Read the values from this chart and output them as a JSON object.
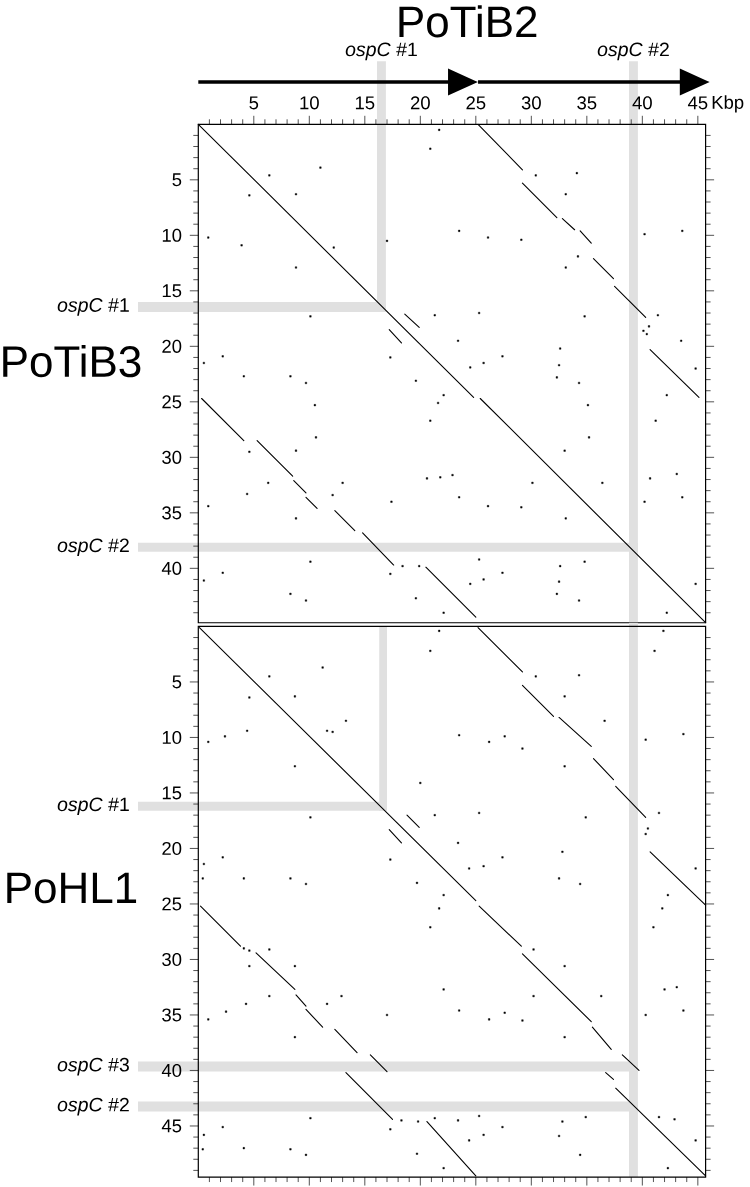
{
  "chart_data": [
    {
      "type": "line",
      "title": "PoTiB2",
      "xlabel": "Kbp",
      "ylabel": "PoTiB3",
      "xlim": [
        0,
        45.7
      ],
      "ylim": [
        44.9,
        0
      ],
      "xticks": [
        {
          "value": 1,
          "label": null
        },
        {
          "value": 2,
          "label": null
        },
        {
          "value": 3,
          "label": null
        },
        {
          "value": 4,
          "label": null
        },
        5,
        {
          "value": 6,
          "label": null
        },
        {
          "value": 7,
          "label": null
        },
        {
          "value": 8,
          "label": null
        },
        {
          "value": 9,
          "label": null
        },
        10,
        {
          "value": 11,
          "label": null
        },
        {
          "value": 12,
          "label": null
        },
        {
          "value": 13,
          "label": null
        },
        {
          "value": 14,
          "label": null
        },
        15,
        {
          "value": 16,
          "label": null
        },
        {
          "value": 17,
          "label": null
        },
        {
          "value": 18,
          "label": null
        },
        {
          "value": 19,
          "label": null
        },
        20,
        {
          "value": 21,
          "label": null
        },
        {
          "value": 22,
          "label": null
        },
        {
          "value": 23,
          "label": null
        },
        {
          "value": 24,
          "label": null
        },
        25,
        {
          "value": 26,
          "label": null
        },
        {
          "value": 27,
          "label": null
        },
        {
          "value": 28,
          "label": null
        },
        {
          "value": 29,
          "label": null
        },
        30,
        {
          "value": 31,
          "label": null
        },
        {
          "value": 32,
          "label": null
        },
        {
          "value": 33,
          "label": null
        },
        {
          "value": 34,
          "label": null
        },
        35,
        {
          "value": 36,
          "label": null
        },
        {
          "value": 37,
          "label": null
        },
        {
          "value": 38,
          "label": null
        },
        {
          "value": 39,
          "label": null
        },
        40,
        {
          "value": 41,
          "label": null
        },
        {
          "value": 42,
          "label": null
        },
        {
          "value": 43,
          "label": null
        },
        {
          "value": 44,
          "label": null
        },
        45
      ],
      "yticks": [
        {
          "value": 1,
          "label": null
        },
        {
          "value": 2,
          "label": null
        },
        {
          "value": 3,
          "label": null
        },
        {
          "value": 4,
          "label": null
        },
        5,
        {
          "value": 6,
          "label": null
        },
        {
          "value": 7,
          "label": null
        },
        {
          "value": 8,
          "label": null
        },
        {
          "value": 9,
          "label": null
        },
        10,
        {
          "value": 11,
          "label": null
        },
        {
          "value": 12,
          "label": null
        },
        {
          "value": 13,
          "label": null
        },
        {
          "value": 14,
          "label": null
        },
        15,
        {
          "value": 16,
          "label": null
        },
        {
          "value": 17,
          "label": null
        },
        {
          "value": 18,
          "label": null
        },
        {
          "value": 19,
          "label": null
        },
        20,
        {
          "value": 21,
          "label": null
        },
        {
          "value": 22,
          "label": null
        },
        {
          "value": 23,
          "label": null
        },
        {
          "value": 24,
          "label": null
        },
        25,
        {
          "value": 26,
          "label": null
        },
        {
          "value": 27,
          "label": null
        },
        {
          "value": 28,
          "label": null
        },
        {
          "value": 29,
          "label": null
        },
        30,
        {
          "value": 31,
          "label": null
        },
        {
          "value": 32,
          "label": null
        },
        {
          "value": 33,
          "label": null
        },
        {
          "value": 34,
          "label": null
        },
        35,
        {
          "value": 36,
          "label": null
        },
        {
          "value": 37,
          "label": null
        },
        {
          "value": 38,
          "label": null
        },
        {
          "value": 39,
          "label": null
        },
        40,
        {
          "value": 41,
          "label": null
        },
        {
          "value": 42,
          "label": null
        },
        {
          "value": 43,
          "label": null
        },
        {
          "value": 44,
          "label": null
        }
      ],
      "series": [
        {
          "color": "#000000",
          "x": [
            0.0,
            24.8,
            null,
            25.4,
            45.7
          ],
          "values": [
            0.0,
            24.6,
            null,
            24.7,
            44.9
          ]
        },
        {
          "color": "#000000",
          "x": [
            25.2,
            29.2,
            null,
            29.2,
            32.3,
            null,
            32.8,
            33.9,
            null,
            34.4,
            35.4,
            null,
            35.6,
            37.4,
            null,
            37.5,
            40.3,
            null,
            40.7,
            45.1
          ],
          "values": [
            0.0,
            4.1,
            null,
            5.3,
            8.4,
            null,
            8.5,
            9.5,
            null,
            9.6,
            10.7,
            null,
            12.1,
            13.9,
            null,
            14.6,
            17.4,
            null,
            20.3,
            24.6
          ]
        },
        {
          "color": "#000000",
          "x": [
            0.3,
            4.1,
            null,
            5.3,
            8.5,
            null,
            8.6,
            9.7,
            null,
            9.7,
            10.7,
            null,
            12.3,
            14.1,
            null,
            14.8,
            17.6,
            null,
            20.5,
            25.0
          ],
          "values": [
            24.7,
            28.5,
            null,
            28.5,
            31.7,
            null,
            32.1,
            33.2,
            null,
            33.6,
            34.6,
            null,
            34.8,
            36.6,
            null,
            36.8,
            39.7,
            null,
            39.9,
            44.4
          ]
        },
        {
          "color": "#000000",
          "x": [
            18.6,
            19.9,
            null,
            17.2,
            18.3
          ],
          "values": [
            17.1,
            18.3,
            null,
            18.5,
            19.7
          ]
        },
        {
          "type": "scatter",
          "color": "#000000",
          "marker": "square",
          "x": [
            21.7,
            20.9,
            11.0,
            6.4,
            4.6,
            8.8,
            34.1,
            30.4,
            33.1,
            0.9,
            3.9,
            12.2,
            17.0,
            23.5,
            26.1,
            29.1,
            40.2,
            43.6,
            8.8,
            33.1,
            34.2,
            10.1,
            21.3,
            25.3,
            34.8,
            41.4,
            2.2,
            0.5,
            17.3,
            23.4,
            27.4,
            25.7,
            24.5,
            32.6,
            32.5,
            43.5,
            4.1,
            8.3,
            9.7,
            19.6,
            32.3,
            34.3,
            44.8,
            10.5,
            22.1,
            21.6,
            35.1,
            42.2,
            20.9,
            41.2,
            10.6,
            35.2,
            4.6,
            8.8,
            33.0,
            20.6,
            21.8,
            22.9,
            13.0,
            6.3,
            30.1,
            36.4,
            40.7,
            43.1,
            4.4,
            12.1,
            23.5,
            26.1,
            29.1,
            40.2,
            43.6,
            17.4,
            0.9,
            8.8,
            33.1,
            10.1,
            25.3,
            34.8,
            2.2,
            0.5,
            17.3,
            27.4,
            25.7,
            24.5,
            32.6,
            32.5,
            44.8,
            8.3,
            9.7,
            19.6,
            32.3,
            34.3,
            22.1,
            42.2,
            40.6,
            40.1,
            40.4,
            18.4,
            19.9
          ],
          "values": [
            0.5,
            2.2,
            3.9,
            4.6,
            6.4,
            6.3,
            4.4,
            4.6,
            6.3,
            10.2,
            10.9,
            11.1,
            10.5,
            9.6,
            10.2,
            10.4,
            9.9,
            9.6,
            12.9,
            12.9,
            11.9,
            17.3,
            17.2,
            17.0,
            17.3,
            17.2,
            20.9,
            21.5,
            21.0,
            19.5,
            20.9,
            21.5,
            21.9,
            20.2,
            21.7,
            19.5,
            22.7,
            22.7,
            23.3,
            23.1,
            22.8,
            23.3,
            22.0,
            25.3,
            24.4,
            25.1,
            25.3,
            24.4,
            26.7,
            26.7,
            28.2,
            28.2,
            29.5,
            29.4,
            29.4,
            31.9,
            31.8,
            31.6,
            32.3,
            32.3,
            32.3,
            32.3,
            31.9,
            31.5,
            33.3,
            33.4,
            33.6,
            34.4,
            34.5,
            34.0,
            33.6,
            34.0,
            34.4,
            35.5,
            35.5,
            39.4,
            39.2,
            39.4,
            40.4,
            41.1,
            40.5,
            40.4,
            41.0,
            41.4,
            39.8,
            41.2,
            41.4,
            42.3,
            42.9,
            42.7,
            42.3,
            42.9,
            44.0,
            44.0,
            18.2,
            18.6,
            18.9,
            39.8,
            39.8
          ]
        }
      ],
      "bands": [
        {
          "axis": "x",
          "from": 16.1,
          "to": 16.9,
          "label": "*ospC* #1",
          "color": "#e0e0e0"
        },
        {
          "axis": "x",
          "from": 38.8,
          "to": 39.6,
          "label": "*ospC* #2",
          "color": "#e0e0e0"
        },
        {
          "axis": "y",
          "from": 16.0,
          "to": 16.9,
          "label": "*ospC* #1",
          "color": "#e0e0e0"
        },
        {
          "axis": "y",
          "from": 37.7,
          "to": 38.5,
          "label": "*ospC* #2",
          "color": "#e0e0e0"
        }
      ]
    },
    {
      "type": "line",
      "ylabel": "PoHL1",
      "xlim": [
        0,
        45.7
      ],
      "ylim": [
        49.6,
        0
      ],
      "tick_labels": "y",
      "xticks": [
        {
          "value": 1,
          "label": null
        },
        {
          "value": 2,
          "label": null
        },
        {
          "value": 3,
          "label": null
        },
        {
          "value": 4,
          "label": null
        },
        5,
        {
          "value": 6,
          "label": null
        },
        {
          "value": 7,
          "label": null
        },
        {
          "value": 8,
          "label": null
        },
        {
          "value": 9,
          "label": null
        },
        10,
        {
          "value": 11,
          "label": null
        },
        {
          "value": 12,
          "label": null
        },
        {
          "value": 13,
          "label": null
        },
        {
          "value": 14,
          "label": null
        },
        15,
        {
          "value": 16,
          "label": null
        },
        {
          "value": 17,
          "label": null
        },
        {
          "value": 18,
          "label": null
        },
        {
          "value": 19,
          "label": null
        },
        20,
        {
          "value": 21,
          "label": null
        },
        {
          "value": 22,
          "label": null
        },
        {
          "value": 23,
          "label": null
        },
        {
          "value": 24,
          "label": null
        },
        25,
        {
          "value": 26,
          "label": null
        },
        {
          "value": 27,
          "label": null
        },
        {
          "value": 28,
          "label": null
        },
        {
          "value": 29,
          "label": null
        },
        30,
        {
          "value": 31,
          "label": null
        },
        {
          "value": 32,
          "label": null
        },
        {
          "value": 33,
          "label": null
        },
        {
          "value": 34,
          "label": null
        },
        35,
        {
          "value": 36,
          "label": null
        },
        {
          "value": 37,
          "label": null
        },
        {
          "value": 38,
          "label": null
        },
        {
          "value": 39,
          "label": null
        },
        40,
        {
          "value": 41,
          "label": null
        },
        {
          "value": 42,
          "label": null
        },
        {
          "value": 43,
          "label": null
        },
        {
          "value": 44,
          "label": null
        },
        45
      ],
      "yticks": [
        {
          "value": 1,
          "label": null
        },
        {
          "value": 2,
          "label": null
        },
        {
          "value": 3,
          "label": null
        },
        {
          "value": 4,
          "label": null
        },
        5,
        {
          "value": 6,
          "label": null
        },
        {
          "value": 7,
          "label": null
        },
        {
          "value": 8,
          "label": null
        },
        {
          "value": 9,
          "label": null
        },
        10,
        {
          "value": 11,
          "label": null
        },
        {
          "value": 12,
          "label": null
        },
        {
          "value": 13,
          "label": null
        },
        {
          "value": 14,
          "label": null
        },
        15,
        {
          "value": 16,
          "label": null
        },
        {
          "value": 17,
          "label": null
        },
        {
          "value": 18,
          "label": null
        },
        {
          "value": 19,
          "label": null
        },
        20,
        {
          "value": 21,
          "label": null
        },
        {
          "value": 22,
          "label": null
        },
        {
          "value": 23,
          "label": null
        },
        {
          "value": 24,
          "label": null
        },
        25,
        {
          "value": 26,
          "label": null
        },
        {
          "value": 27,
          "label": null
        },
        {
          "value": 28,
          "label": null
        },
        {
          "value": 29,
          "label": null
        },
        30,
        {
          "value": 31,
          "label": null
        },
        {
          "value": 32,
          "label": null
        },
        {
          "value": 33,
          "label": null
        },
        {
          "value": 34,
          "label": null
        },
        35,
        {
          "value": 36,
          "label": null
        },
        {
          "value": 37,
          "label": null
        },
        {
          "value": 38,
          "label": null
        },
        {
          "value": 39,
          "label": null
        },
        40,
        {
          "value": 41,
          "label": null
        },
        {
          "value": 42,
          "label": null
        },
        {
          "value": 43,
          "label": null
        },
        {
          "value": 44,
          "label": null
        },
        45,
        {
          "value": 46,
          "label": null
        },
        {
          "value": 47,
          "label": null
        },
        {
          "value": 48,
          "label": null
        },
        {
          "value": 49,
          "label": null
        }
      ],
      "series": [
        {
          "color": "#000000",
          "x": [
            0.1,
            25.0,
            null,
            25.3,
            29.1,
            null,
            29.2,
            35.4,
            null,
            35.5,
            37.2,
            null,
            38.2,
            39.7,
            null,
            36.7,
            37.4,
            null,
            37.6,
            45.7
          ],
          "values": [
            0.1,
            24.7,
            null,
            25.2,
            28.8,
            null,
            29.5,
            35.6,
            null,
            36.1,
            38.1,
            null,
            38.6,
            40.0,
            null,
            40.2,
            40.8,
            null,
            41.6,
            49.5
          ]
        },
        {
          "color": "#000000",
          "x": [
            25.2,
            29.2,
            null,
            29.2,
            32.0,
            null,
            32.5,
            35.4,
            null,
            35.6,
            37.4,
            null,
            37.6,
            40.3,
            null,
            40.7,
            45.7
          ],
          "values": [
            0.1,
            4.1,
            null,
            5.3,
            8.1,
            null,
            8.2,
            10.8,
            null,
            11.9,
            13.8,
            null,
            14.4,
            17.2,
            null,
            20.3,
            25.1
          ]
        },
        {
          "color": "#000000",
          "x": [
            0.2,
            3.8,
            null,
            5.2,
            8.7,
            null,
            8.8,
            9.7,
            null,
            9.7,
            11.2,
            null,
            12.3,
            14.3,
            null,
            15.5,
            17.0,
            null,
            13.3,
            17.5,
            null,
            20.6,
            25.0
          ],
          "values": [
            25.2,
            28.8,
            null,
            29.4,
            32.7,
            null,
            33.2,
            34.2,
            null,
            34.5,
            36.1,
            null,
            36.3,
            38.4,
            null,
            38.6,
            40.1,
            null,
            40.2,
            44.4,
            null,
            44.6,
            49.5
          ]
        },
        {
          "color": "#000000",
          "x": [
            18.8,
            19.9,
            null,
            17.2,
            18.3
          ],
          "values": [
            17.0,
            18.1,
            null,
            18.3,
            19.5
          ]
        },
        {
          "type": "scatter",
          "color": "#000000",
          "marker": "square",
          "x": [
            21.7,
            20.9,
            41.9,
            41.1,
            11.2,
            6.4,
            34.3,
            30.4,
            4.6,
            8.7,
            33.0,
            4.4,
            2.4,
            0.9,
            11.6,
            12.1,
            13.3,
            36.6,
            23.5,
            26.2,
            27.6,
            29.2,
            40.3,
            43.7,
            8.7,
            33.0,
            20.0,
            10.1,
            21.3,
            25.3,
            34.9,
            41.5,
            2.2,
            17.3,
            23.4,
            32.8,
            27.4,
            0.5,
            0.4,
            4.1,
            8.3,
            9.7,
            19.7,
            24.4,
            25.7,
            32.5,
            34.4,
            44.8,
            22.1,
            21.7,
            42.3,
            41.8,
            20.9,
            41.0,
            6.4,
            4.6,
            8.7,
            30.2,
            33.0,
            6.4,
            22.1,
            42.0,
            43.1,
            12.9,
            30.2,
            36.3,
            2.5,
            0.9,
            4.3,
            11.6,
            17.0,
            23.5,
            26.2,
            27.6,
            29.2,
            40.3,
            43.7,
            8.7,
            33.0,
            10.1,
            21.3,
            25.3,
            34.9,
            41.5,
            42.9,
            2.2,
            17.3,
            23.4,
            32.8,
            27.4,
            0.5,
            0.4,
            4.1,
            8.3,
            9.7,
            19.7,
            24.4,
            25.7,
            32.5,
            34.4,
            44.8,
            22.1,
            42.3,
            40.5,
            40.3,
            4.1,
            4.6,
            18.3,
            19.8
          ],
          "values": [
            0.4,
            2.2,
            0.4,
            2.2,
            3.7,
            4.5,
            4.4,
            4.5,
            6.4,
            6.3,
            6.3,
            9.4,
            9.9,
            10.4,
            9.4,
            9.5,
            8.5,
            8.5,
            9.8,
            10.4,
            9.9,
            11.0,
            10.2,
            9.7,
            12.6,
            12.6,
            14.1,
            17.2,
            17.0,
            16.8,
            17.2,
            16.8,
            20.8,
            21.0,
            19.5,
            20.3,
            20.8,
            21.4,
            22.7,
            22.7,
            22.7,
            23.2,
            23.1,
            21.8,
            21.6,
            22.7,
            23.2,
            21.8,
            24.2,
            25.4,
            24.2,
            25.4,
            27.1,
            27.1,
            29.1,
            30.6,
            30.6,
            29.1,
            30.6,
            33.3,
            32.7,
            32.7,
            32.5,
            33.3,
            33.3,
            33.3,
            34.7,
            35.4,
            34.0,
            34.0,
            35.0,
            34.6,
            35.4,
            34.8,
            35.5,
            35.0,
            34.6,
            37.0,
            37.0,
            44.3,
            44.3,
            44.1,
            44.2,
            44.2,
            44.4,
            45.1,
            45.3,
            44.5,
            44.6,
            45.1,
            45.8,
            47.1,
            47.0,
            47.1,
            47.6,
            47.5,
            46.3,
            45.8,
            45.9,
            47.6,
            46.3,
            48.8,
            48.8,
            18.2,
            18.7,
            29.0,
            29.2,
            44.5,
            44.6
          ]
        }
      ],
      "bands": [
        {
          "axis": "x",
          "from": 16.3,
          "to": 17.0,
          "color": "#e0e0e0"
        },
        {
          "axis": "x",
          "from": 38.8,
          "to": 39.6,
          "color": "#e0e0e0"
        },
        {
          "axis": "y",
          "from": 15.8,
          "to": 16.6,
          "label": "*ospC* #1",
          "color": "#e0e0e0"
        },
        {
          "axis": "y",
          "from": 39.2,
          "to": 40.1,
          "label": "*ospC* #3",
          "color": "#e0e0e0"
        },
        {
          "axis": "y",
          "from": 42.8,
          "to": 43.7,
          "label": "*ospC* #2",
          "color": "#e0e0e0"
        }
      ]
    }
  ]
}
